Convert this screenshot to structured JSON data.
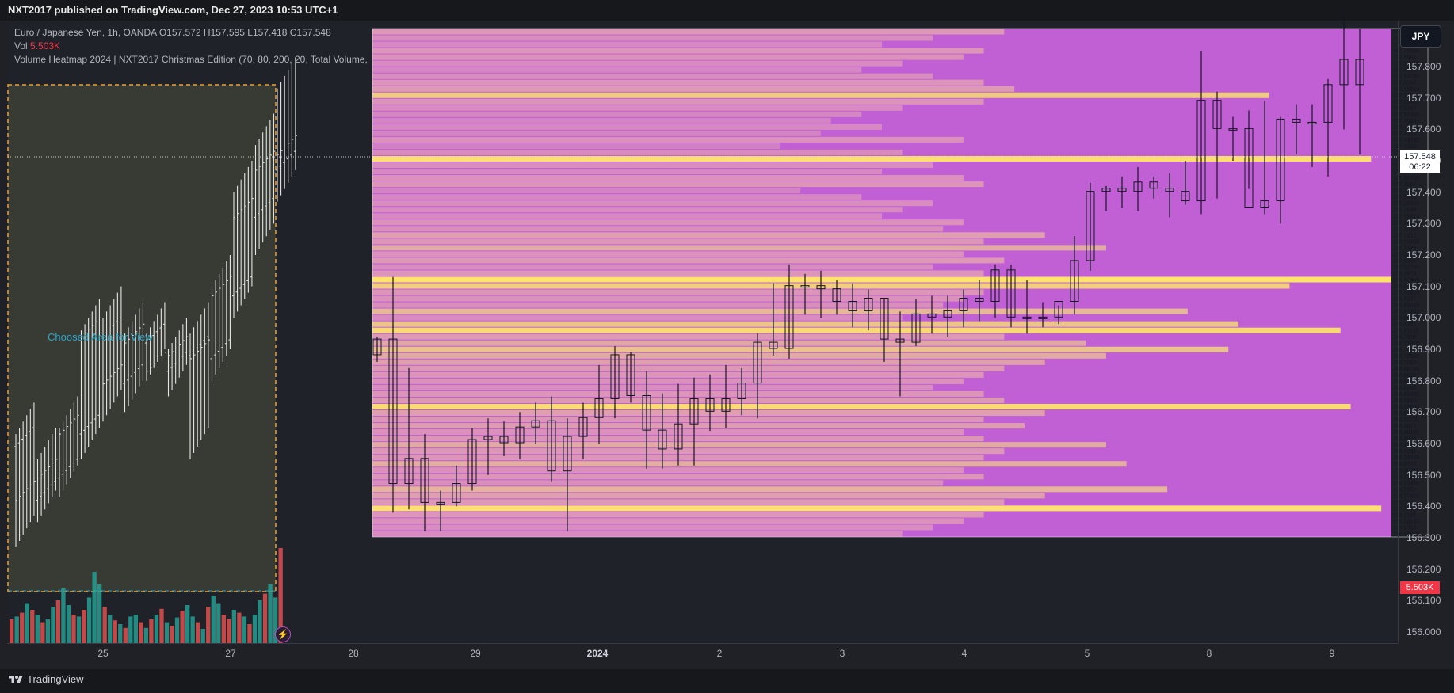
{
  "header": {
    "publisher": "NXT2017 published on TradingView.com, Dec 27, 2023 10:53 UTC+1"
  },
  "legend": {
    "symbol": "Euro / Japanese Yen, 1h, OANDA",
    "o_label": "O",
    "o_value": "157.572",
    "h_label": "H",
    "h_value": "157.595",
    "l_label": "L",
    "l_value": "157.418",
    "c_label": "C",
    "c_value": "157.548",
    "vol_label": "Vol",
    "vol_value": "5.503K",
    "indicator": "Volume Heatmap 2024 | NXT2017 Christmas Edition (70, 80, 200, 20, Total Volume,"
  },
  "chosen_area_label": "Choosed Area for View",
  "currency_button": "JPY",
  "last_price": {
    "price": "157.548",
    "countdown": "06:22"
  },
  "volume_tag": "5.503K",
  "footer": {
    "brand": "TradingView"
  },
  "colors": {
    "background": "#202229",
    "heat_base": "#c060d4",
    "heat_mid": "#d98cc0",
    "heat_warm": "#e6b898",
    "heat_hot": "#ffe36a",
    "bull_volume": "#26a69a",
    "bear_volume": "#ef5350"
  },
  "chart_data": {
    "type": "heatmap",
    "title": "Volume Heatmap 2024 | NXT2017 Christmas Edition",
    "symbol": "EURJPY",
    "timeframe": "1h",
    "x_tick_labels": [
      "25",
      "27",
      "28",
      "29",
      "2024",
      "2",
      "3",
      "4",
      "5",
      "8",
      "9"
    ],
    "y_axis_labels": [
      "157.800",
      "157.700",
      "157.600",
      "157.500",
      "157.400",
      "157.300",
      "157.200",
      "157.100",
      "157.000",
      "156.900",
      "156.800",
      "156.700",
      "156.600",
      "156.500",
      "156.400",
      "156.300",
      "156.200",
      "156.100",
      "156.000"
    ],
    "ylim": [
      155.95,
      157.9
    ],
    "price_levels": [
      "157.782",
      "157.76135",
      "157.7407",
      "157.72005",
      "157.6994",
      "157.67875",
      "157.6581",
      "157.63745",
      "157.6168",
      "157.59615",
      "157.5755",
      "157.55485",
      "157.5342",
      "157.51355",
      "157.4929",
      "157.47225",
      "157.4516",
      "157.43095",
      "157.4103",
      "157.38965",
      "157.369",
      "157.34835",
      "157.3277",
      "157.30705",
      "157.2864",
      "157.26575",
      "157.2451",
      "157.22445",
      "157.2038",
      "157.18315",
      "157.1625",
      "157.14185",
      "157.1212",
      "157.10055",
      "157.0799",
      "157.05925",
      "157.0386",
      "157.01795",
      "156.9973",
      "156.97665",
      "156.956",
      "156.93535",
      "156.9147",
      "156.89405",
      "156.8734",
      "156.85275",
      "156.8321",
      "156.81145",
      "156.7908",
      "156.77015",
      "156.7495",
      "156.72885",
      "156.7082",
      "156.68755",
      "156.6669",
      "156.64625",
      "156.6256",
      "156.60495",
      "156.5843",
      "156.56365",
      "156.543",
      "156.52235",
      "156.5017",
      "156.48105",
      "156.4604",
      "156.43975",
      "156.4191",
      "156.39845",
      "156.3778",
      "156.35715",
      "156.3365",
      "156.31585",
      "156.2952",
      "156.27455",
      "156.2539",
      "156.23325",
      "156.2126",
      "156.19195",
      "156.1713",
      "156.15065"
    ],
    "volume_profile": [
      0.62,
      0.55,
      0.5,
      0.6,
      0.58,
      0.52,
      0.48,
      0.55,
      0.6,
      0.63,
      0.88,
      0.6,
      0.52,
      0.48,
      0.45,
      0.5,
      0.44,
      0.58,
      0.4,
      0.52,
      0.98,
      0.55,
      0.5,
      0.58,
      0.6,
      0.42,
      0.48,
      0.55,
      0.52,
      0.5,
      0.58,
      0.56,
      0.66,
      0.6,
      0.72,
      0.58,
      0.62,
      0.55,
      0.6,
      1.0,
      0.9,
      0.6,
      0.58,
      0.56,
      0.8,
      0.52,
      0.85,
      0.95,
      0.62,
      0.7,
      0.84,
      0.72,
      0.66,
      0.62,
      0.6,
      0.58,
      0.55,
      0.6,
      0.62,
      0.96,
      0.66,
      0.6,
      0.64,
      0.58,
      0.6,
      0.72,
      0.62,
      0.6,
      0.74,
      0.58,
      0.6,
      0.56,
      0.78,
      0.66,
      0.62,
      0.99,
      0.6,
      0.58,
      0.55,
      0.52
    ],
    "candles_2024": [
      [
        156.88,
        156.94,
        156.86,
        156.93
      ],
      [
        156.93,
        157.13,
        156.38,
        156.47
      ],
      [
        156.47,
        156.84,
        156.39,
        156.55
      ],
      [
        156.55,
        156.63,
        156.32,
        156.41
      ],
      [
        156.41,
        156.45,
        156.32,
        156.41
      ],
      [
        156.41,
        156.53,
        156.4,
        156.47
      ],
      [
        156.47,
        156.65,
        156.45,
        156.61
      ],
      [
        156.61,
        156.68,
        156.5,
        156.62
      ],
      [
        156.62,
        156.67,
        156.56,
        156.6
      ],
      [
        156.6,
        156.7,
        156.55,
        156.65
      ],
      [
        156.65,
        156.73,
        156.6,
        156.67
      ],
      [
        156.67,
        156.75,
        156.48,
        156.51
      ],
      [
        156.51,
        156.68,
        156.32,
        156.62
      ],
      [
        156.62,
        156.73,
        156.55,
        156.68
      ],
      [
        156.68,
        156.85,
        156.6,
        156.74
      ],
      [
        156.74,
        156.91,
        156.68,
        156.88
      ],
      [
        156.88,
        156.89,
        156.73,
        156.75
      ],
      [
        156.75,
        156.83,
        156.52,
        156.64
      ],
      [
        156.64,
        156.76,
        156.52,
        156.58
      ],
      [
        156.58,
        156.79,
        156.53,
        156.66
      ],
      [
        156.66,
        156.81,
        156.53,
        156.74
      ],
      [
        156.74,
        156.82,
        156.64,
        156.7
      ],
      [
        156.7,
        156.85,
        156.65,
        156.74
      ],
      [
        156.74,
        156.84,
        156.69,
        156.79
      ],
      [
        156.79,
        156.95,
        156.68,
        156.92
      ],
      [
        156.92,
        157.11,
        156.88,
        156.9
      ],
      [
        156.9,
        157.17,
        156.87,
        157.1
      ],
      [
        157.1,
        157.14,
        157.01,
        157.1
      ],
      [
        157.1,
        157.15,
        157.0,
        157.09
      ],
      [
        157.09,
        157.12,
        157.01,
        157.05
      ],
      [
        157.05,
        157.11,
        156.97,
        157.02
      ],
      [
        157.02,
        157.09,
        156.96,
        157.06
      ],
      [
        157.06,
        157.06,
        156.86,
        156.93
      ],
      [
        156.93,
        157.02,
        156.75,
        156.92
      ],
      [
        156.92,
        157.06,
        156.91,
        157.01
      ],
      [
        157.01,
        157.07,
        156.95,
        157.0
      ],
      [
        157.0,
        157.07,
        156.94,
        157.02
      ],
      [
        157.02,
        157.09,
        156.97,
        157.06
      ],
      [
        157.06,
        157.12,
        156.99,
        157.05
      ],
      [
        157.05,
        157.17,
        157.0,
        157.15
      ],
      [
        157.15,
        157.17,
        156.97,
        157.0
      ],
      [
        157.0,
        157.12,
        156.95,
        157.0
      ],
      [
        157.0,
        157.05,
        156.97,
        157.0
      ],
      [
        157.0,
        157.04,
        156.98,
        157.05
      ],
      [
        157.05,
        157.26,
        157.01,
        157.18
      ],
      [
        157.18,
        157.43,
        157.15,
        157.4
      ],
      [
        157.4,
        157.42,
        157.34,
        157.41
      ],
      [
        157.41,
        157.45,
        157.35,
        157.4
      ],
      [
        157.4,
        157.48,
        157.34,
        157.43
      ],
      [
        157.43,
        157.45,
        157.38,
        157.41
      ],
      [
        157.41,
        157.46,
        157.32,
        157.4
      ],
      [
        157.4,
        157.5,
        157.36,
        157.37
      ],
      [
        157.37,
        157.85,
        157.33,
        157.69
      ],
      [
        157.69,
        157.72,
        157.38,
        157.6
      ],
      [
        157.6,
        157.64,
        157.5,
        157.6
      ],
      [
        157.6,
        157.66,
        157.41,
        157.35
      ],
      [
        157.35,
        157.69,
        157.33,
        157.37
      ],
      [
        157.37,
        157.64,
        157.3,
        157.63
      ],
      [
        157.63,
        157.68,
        157.52,
        157.62
      ],
      [
        157.62,
        157.68,
        157.48,
        157.62
      ],
      [
        157.62,
        157.76,
        157.45,
        157.74
      ],
      [
        157.74,
        157.99,
        157.6,
        157.82
      ],
      [
        157.82,
        157.92,
        157.52,
        157.74
      ]
    ],
    "candles_december": [
      [
        156.62,
        156.68,
        156.32,
        156.45
      ],
      [
        156.45,
        156.6,
        156.4,
        156.52
      ],
      [
        156.52,
        156.7,
        156.48,
        156.66
      ],
      [
        156.66,
        157.01,
        156.6,
        156.97
      ],
      [
        156.97,
        157.05,
        156.72,
        156.82
      ],
      [
        156.82,
        157.0,
        156.75,
        156.95
      ],
      [
        156.95,
        157.0,
        156.85,
        156.86
      ],
      [
        156.86,
        156.95,
        156.8,
        156.91
      ],
      [
        156.91,
        157.0,
        156.6,
        156.9
      ],
      [
        156.9,
        157.15,
        156.85,
        157.1
      ],
      [
        157.1,
        157.45,
        157.05,
        157.35
      ],
      [
        157.35,
        157.6,
        157.25,
        157.5
      ],
      [
        157.5,
        157.78,
        157.42,
        157.55
      ]
    ],
    "volume_bars": [
      0.25,
      0.28,
      0.32,
      0.42,
      0.35,
      0.3,
      0.22,
      0.25,
      0.38,
      0.45,
      0.58,
      0.4,
      0.3,
      0.28,
      0.35,
      0.48,
      0.75,
      0.62,
      0.38,
      0.3,
      0.24,
      0.2,
      0.16,
      0.28,
      0.3,
      0.22,
      0.16,
      0.25,
      0.3,
      0.36,
      0.22,
      0.18,
      0.27,
      0.34,
      0.4,
      0.28,
      0.22,
      0.15,
      0.38,
      0.5,
      0.42,
      0.3,
      0.25,
      0.35,
      0.32,
      0.28,
      0.2,
      0.3,
      0.45,
      0.52,
      0.62,
      0.48,
      1.0
    ],
    "volume_bars_direction": [
      "bear",
      "bull",
      "bear",
      "bull",
      "bear",
      "bull",
      "bear",
      "bull",
      "bull",
      "bear",
      "bull",
      "bull",
      "bear",
      "bull",
      "bear",
      "bull",
      "bull",
      "bull",
      "bear",
      "bull",
      "bear",
      "bull",
      "bear",
      "bull",
      "bull",
      "bear",
      "bull",
      "bear",
      "bull",
      "bear",
      "bull",
      "bear",
      "bull",
      "bear",
      "bull",
      "bull",
      "bear",
      "bull",
      "bear",
      "bull",
      "bull",
      "bear",
      "bear",
      "bull",
      "bear",
      "bull",
      "bear",
      "bull",
      "bull",
      "bear",
      "bull",
      "bull",
      "bear"
    ]
  }
}
